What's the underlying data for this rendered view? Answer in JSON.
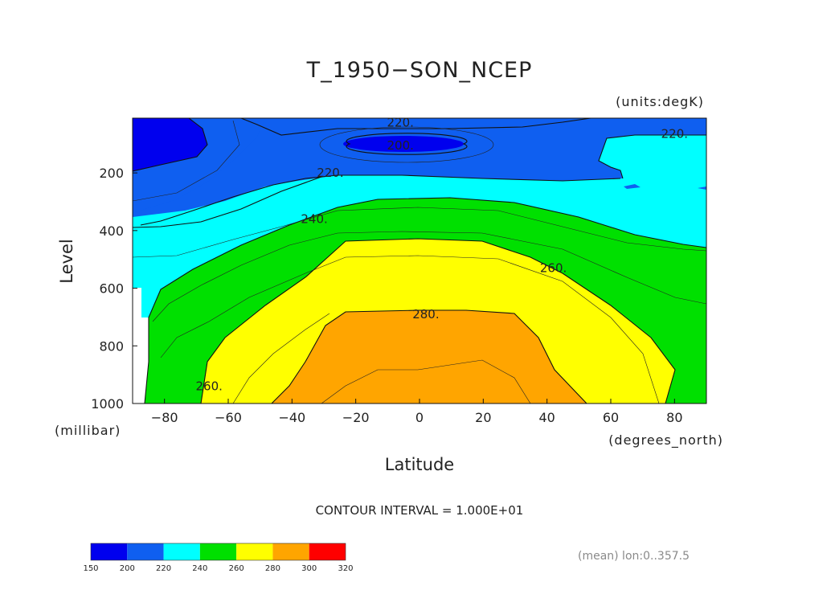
{
  "chart_data": {
    "type": "contour",
    "title": "T_1950−SON_NCEP",
    "units": "(units:degK)",
    "xlabel": "Latitude",
    "ylabel": "Level",
    "x_unit": "(degrees_north)",
    "y_unit": "(millibar)",
    "xlim": [
      -90,
      90
    ],
    "ylim": [
      1000,
      10
    ],
    "x_ticks": [
      -80,
      -60,
      -40,
      -20,
      0,
      20,
      40,
      60,
      80
    ],
    "x_tick_labels": [
      "−80",
      "−60",
      "−40",
      "−20",
      "0",
      "20",
      "40",
      "60",
      "80"
    ],
    "y_ticks": [
      200,
      400,
      600,
      800,
      1000
    ],
    "y_tick_labels": [
      "200",
      "400",
      "600",
      "800",
      "1000"
    ],
    "contour_interval": "CONTOUR INTERVAL = 1.000E+01",
    "contour_labels": [
      {
        "text": "220.",
        "lat": -6,
        "level": 25
      },
      {
        "text": "220.",
        "lat": 80,
        "level": 65
      },
      {
        "text": "200.",
        "lat": -6,
        "level": 105
      },
      {
        "text": "220.",
        "lat": -28,
        "level": 200
      },
      {
        "text": "240.",
        "lat": -33,
        "level": 360
      },
      {
        "text": "260.",
        "lat": 42,
        "level": 530
      },
      {
        "text": "280.",
        "lat": 2,
        "level": 690
      },
      {
        "text": "260.",
        "lat": -66,
        "level": 940
      }
    ],
    "colorbar": {
      "ticks": [
        "150",
        "200",
        "220",
        "240",
        "260",
        "280",
        "300",
        "320"
      ],
      "colors": [
        "#0000ee",
        "#0f5ff0",
        "#00ffff",
        "#00e000",
        "#ffff00",
        "#ffa500",
        "#ff0000"
      ]
    },
    "note": "(mean) lon:0..357.5"
  }
}
